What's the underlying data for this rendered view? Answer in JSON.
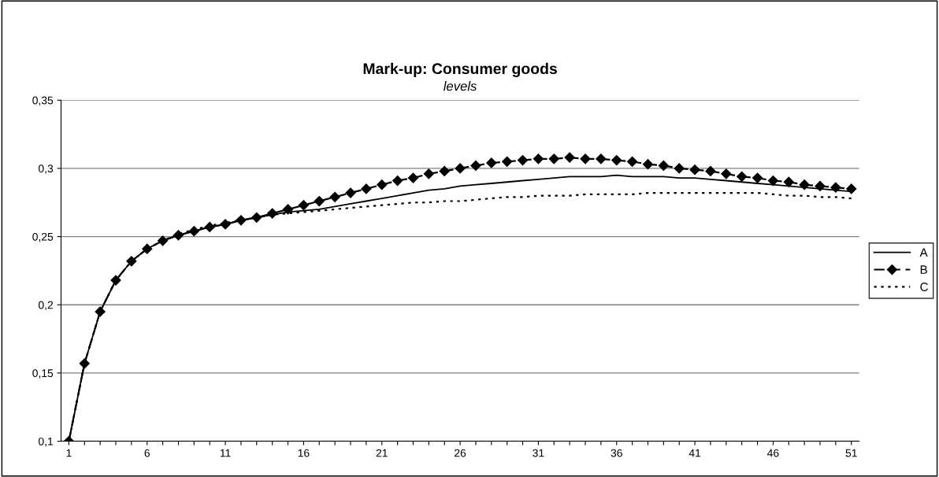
{
  "chart_data": {
    "type": "line",
    "title": "Mark-up: Consumer goods",
    "subtitle": "levels",
    "categories": [
      "1",
      null,
      null,
      null,
      null,
      "6",
      null,
      null,
      null,
      null,
      "11",
      null,
      null,
      null,
      null,
      "16",
      null,
      null,
      null,
      null,
      "21",
      null,
      null,
      null,
      null,
      "26",
      null,
      null,
      null,
      null,
      "31",
      null,
      null,
      null,
      null,
      "36",
      null,
      null,
      null,
      null,
      "41",
      null,
      null,
      null,
      null,
      "46",
      null,
      null,
      null,
      null,
      "51"
    ],
    "series": [
      {
        "name": "A",
        "color": "#000000",
        "line_style": "solid",
        "marker": "none",
        "values": [
          0.1,
          0.157,
          0.195,
          0.218,
          0.232,
          0.241,
          0.247,
          0.251,
          0.254,
          0.257,
          0.259,
          0.262,
          0.264,
          0.266,
          0.268,
          0.269,
          0.27,
          0.272,
          0.274,
          0.276,
          0.278,
          0.28,
          0.282,
          0.284,
          0.285,
          0.287,
          0.288,
          0.289,
          0.29,
          0.291,
          0.292,
          0.293,
          0.294,
          0.294,
          0.294,
          0.295,
          0.294,
          0.294,
          0.294,
          0.293,
          0.293,
          0.292,
          0.291,
          0.29,
          0.289,
          0.288,
          0.287,
          0.286,
          0.285,
          0.284,
          0.283
        ]
      },
      {
        "name": "B",
        "color": "#000000",
        "line_style": "dashed",
        "marker": "diamond",
        "values": [
          0.1,
          0.157,
          0.195,
          0.218,
          0.232,
          0.241,
          0.247,
          0.251,
          0.254,
          0.257,
          0.259,
          0.262,
          0.264,
          0.267,
          0.27,
          0.273,
          0.276,
          0.279,
          0.282,
          0.285,
          0.288,
          0.291,
          0.293,
          0.296,
          0.298,
          0.3,
          0.302,
          0.304,
          0.305,
          0.306,
          0.307,
          0.307,
          0.308,
          0.307,
          0.307,
          0.306,
          0.305,
          0.303,
          0.302,
          0.3,
          0.299,
          0.298,
          0.296,
          0.294,
          0.293,
          0.291,
          0.29,
          0.288,
          0.287,
          0.286,
          0.285
        ]
      },
      {
        "name": "C",
        "color": "#000000",
        "line_style": "dotted",
        "marker": "none",
        "values": [
          0.1,
          0.157,
          0.195,
          0.218,
          0.232,
          0.241,
          0.247,
          0.252,
          0.255,
          0.258,
          0.26,
          0.262,
          0.264,
          0.266,
          0.267,
          0.268,
          0.269,
          0.27,
          0.271,
          0.272,
          0.273,
          0.274,
          0.275,
          0.275,
          0.276,
          0.276,
          0.277,
          0.278,
          0.279,
          0.279,
          0.28,
          0.28,
          0.28,
          0.281,
          0.281,
          0.281,
          0.281,
          0.282,
          0.282,
          0.282,
          0.282,
          0.282,
          0.282,
          0.282,
          0.282,
          0.281,
          0.28,
          0.28,
          0.279,
          0.279,
          0.278
        ]
      }
    ],
    "ylim": [
      0.1,
      0.35
    ],
    "yticks": [
      {
        "value": 0.1,
        "label": "0,1"
      },
      {
        "value": 0.15,
        "label": "0,15"
      },
      {
        "value": 0.2,
        "label": "0,2"
      },
      {
        "value": 0.25,
        "label": "0,25"
      },
      {
        "value": 0.3,
        "label": "0,3"
      },
      {
        "value": 0.35,
        "label": "0,35"
      }
    ],
    "grid": "y",
    "legend": "right"
  }
}
